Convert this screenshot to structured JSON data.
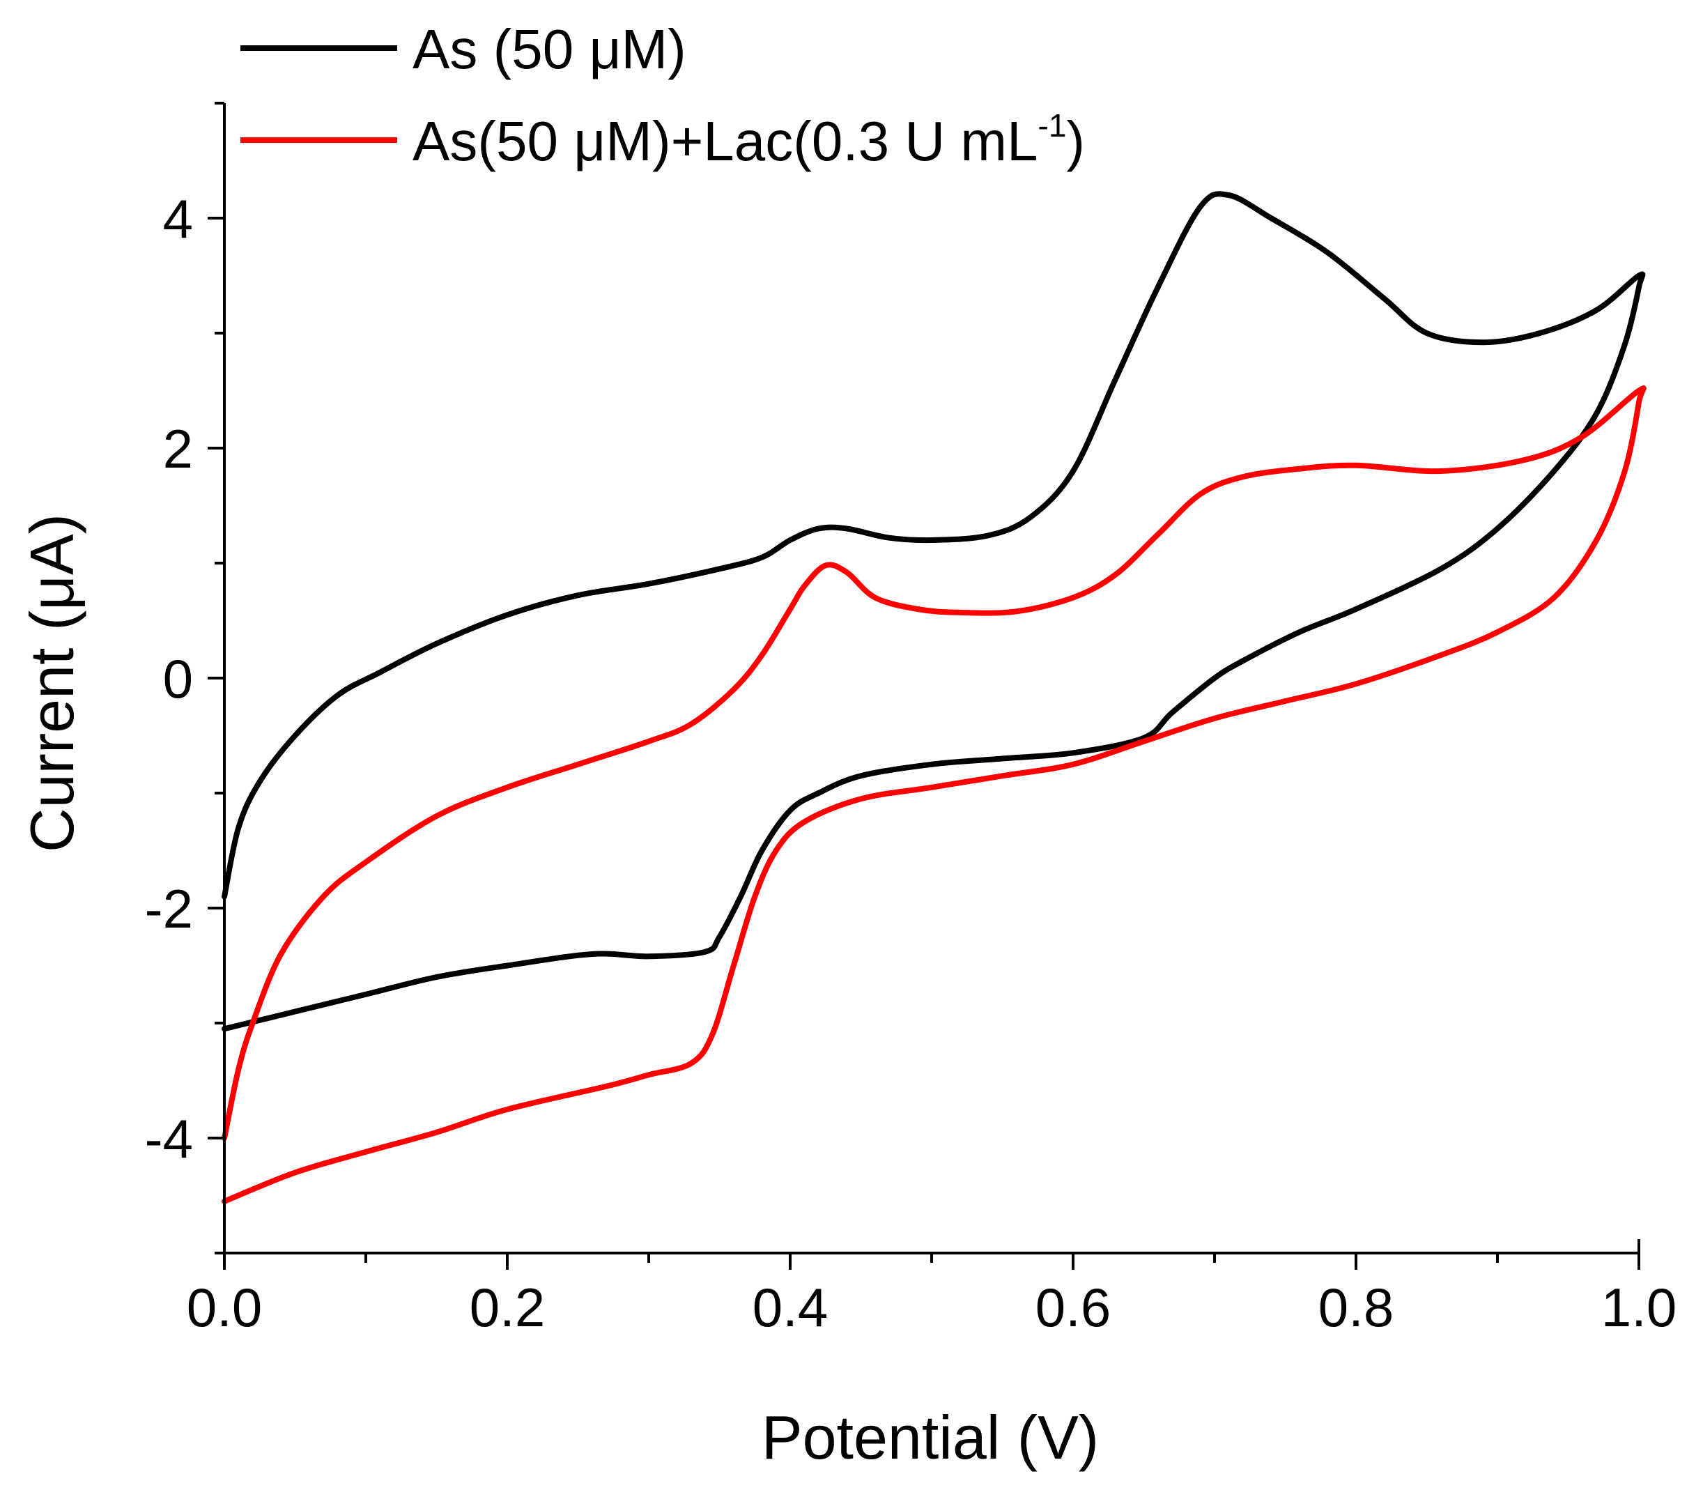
{
  "chart_data": {
    "type": "line",
    "xlabel": "Potential (V)",
    "ylabel": "Current (μA)",
    "xlim": [
      0.0,
      1.0
    ],
    "ylim": [
      -5.0,
      5.0
    ],
    "xticks": [
      "0.0",
      "0.2",
      "0.4",
      "0.6",
      "0.8",
      "1.0"
    ],
    "xtick_values": [
      0.0,
      0.2,
      0.4,
      0.6,
      0.8,
      1.0
    ],
    "yticks": [
      "4",
      "2",
      "0",
      "-2",
      "-4"
    ],
    "ytick_values": [
      4,
      2,
      0,
      -2,
      -4
    ],
    "x_minor_step": 0.1,
    "y_minor_step": 1,
    "grid": false,
    "legend_position": "top-left",
    "series": [
      {
        "name": "As (50 μM)",
        "color": "#000000",
        "points": [
          [
            0.0,
            -1.9
          ],
          [
            0.01,
            -1.3
          ],
          [
            0.025,
            -0.9
          ],
          [
            0.05,
            -0.5
          ],
          [
            0.08,
            -0.15
          ],
          [
            0.11,
            0.05
          ],
          [
            0.15,
            0.3
          ],
          [
            0.2,
            0.55
          ],
          [
            0.25,
            0.72
          ],
          [
            0.3,
            0.82
          ],
          [
            0.35,
            0.95
          ],
          [
            0.38,
            1.05
          ],
          [
            0.4,
            1.2
          ],
          [
            0.42,
            1.3
          ],
          [
            0.44,
            1.3
          ],
          [
            0.47,
            1.22
          ],
          [
            0.5,
            1.2
          ],
          [
            0.54,
            1.24
          ],
          [
            0.57,
            1.4
          ],
          [
            0.6,
            1.8
          ],
          [
            0.63,
            2.6
          ],
          [
            0.66,
            3.4
          ],
          [
            0.69,
            4.1
          ],
          [
            0.71,
            4.2
          ],
          [
            0.74,
            4.0
          ],
          [
            0.78,
            3.7
          ],
          [
            0.82,
            3.3
          ],
          [
            0.85,
            3.0
          ],
          [
            0.89,
            2.92
          ],
          [
            0.93,
            3.0
          ],
          [
            0.97,
            3.2
          ],
          [
            1.0,
            3.5
          ],
          [
            1.0,
            3.4
          ],
          [
            0.99,
            2.9
          ],
          [
            0.97,
            2.3
          ],
          [
            0.94,
            1.8
          ],
          [
            0.9,
            1.3
          ],
          [
            0.86,
            0.95
          ],
          [
            0.8,
            0.6
          ],
          [
            0.76,
            0.4
          ],
          [
            0.72,
            0.15
          ],
          [
            0.7,
            0.0
          ],
          [
            0.67,
            -0.3
          ],
          [
            0.65,
            -0.52
          ],
          [
            0.6,
            -0.65
          ],
          [
            0.55,
            -0.7
          ],
          [
            0.5,
            -0.75
          ],
          [
            0.45,
            -0.85
          ],
          [
            0.42,
            -1.0
          ],
          [
            0.4,
            -1.15
          ],
          [
            0.38,
            -1.5
          ],
          [
            0.365,
            -1.9
          ],
          [
            0.35,
            -2.25
          ],
          [
            0.34,
            -2.38
          ],
          [
            0.3,
            -2.42
          ],
          [
            0.26,
            -2.4
          ],
          [
            0.2,
            -2.5
          ],
          [
            0.15,
            -2.6
          ],
          [
            0.1,
            -2.75
          ],
          [
            0.05,
            -2.9
          ],
          [
            0.0,
            -3.05
          ]
        ]
      },
      {
        "name": "As(50 μM)+Lac(0.3 U mL-1)",
        "color": "#ff0000",
        "points": [
          [
            0.0,
            -4.0
          ],
          [
            0.01,
            -3.4
          ],
          [
            0.02,
            -3.0
          ],
          [
            0.04,
            -2.4
          ],
          [
            0.07,
            -1.9
          ],
          [
            0.1,
            -1.6
          ],
          [
            0.15,
            -1.2
          ],
          [
            0.2,
            -0.95
          ],
          [
            0.25,
            -0.75
          ],
          [
            0.3,
            -0.55
          ],
          [
            0.33,
            -0.4
          ],
          [
            0.36,
            -0.1
          ],
          [
            0.38,
            0.2
          ],
          [
            0.4,
            0.6
          ],
          [
            0.41,
            0.8
          ],
          [
            0.425,
            0.98
          ],
          [
            0.44,
            0.92
          ],
          [
            0.46,
            0.7
          ],
          [
            0.49,
            0.6
          ],
          [
            0.52,
            0.57
          ],
          [
            0.56,
            0.58
          ],
          [
            0.6,
            0.7
          ],
          [
            0.63,
            0.9
          ],
          [
            0.66,
            1.25
          ],
          [
            0.69,
            1.6
          ],
          [
            0.72,
            1.75
          ],
          [
            0.76,
            1.82
          ],
          [
            0.8,
            1.85
          ],
          [
            0.86,
            1.8
          ],
          [
            0.92,
            1.9
          ],
          [
            0.96,
            2.1
          ],
          [
            1.0,
            2.5
          ],
          [
            1.0,
            2.4
          ],
          [
            0.99,
            1.8
          ],
          [
            0.97,
            1.2
          ],
          [
            0.94,
            0.7
          ],
          [
            0.9,
            0.4
          ],
          [
            0.86,
            0.2
          ],
          [
            0.8,
            -0.05
          ],
          [
            0.75,
            -0.2
          ],
          [
            0.7,
            -0.35
          ],
          [
            0.65,
            -0.55
          ],
          [
            0.6,
            -0.75
          ],
          [
            0.55,
            -0.85
          ],
          [
            0.5,
            -0.95
          ],
          [
            0.45,
            -1.05
          ],
          [
            0.41,
            -1.25
          ],
          [
            0.39,
            -1.5
          ],
          [
            0.375,
            -1.9
          ],
          [
            0.36,
            -2.5
          ],
          [
            0.345,
            -3.1
          ],
          [
            0.33,
            -3.35
          ],
          [
            0.3,
            -3.45
          ],
          [
            0.27,
            -3.55
          ],
          [
            0.2,
            -3.75
          ],
          [
            0.15,
            -3.95
          ],
          [
            0.1,
            -4.12
          ],
          [
            0.05,
            -4.3
          ],
          [
            0.0,
            -4.55
          ]
        ]
      }
    ]
  }
}
